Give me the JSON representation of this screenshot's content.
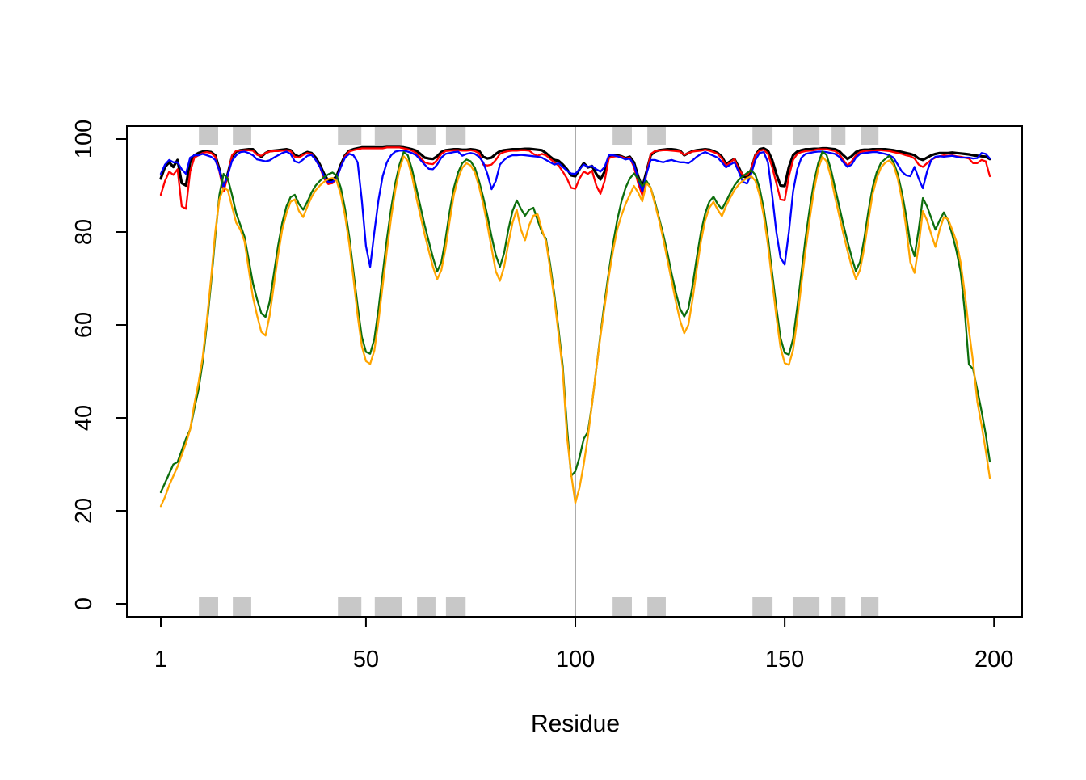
{
  "chart_data": {
    "type": "line",
    "title": "",
    "xlabel": "Residue",
    "ylabel": "",
    "x_range": [
      1,
      199
    ],
    "ylim": [
      0,
      100
    ],
    "x_ticks": [
      1,
      50,
      100,
      150,
      200
    ],
    "y_ticks": [
      0,
      20,
      40,
      60,
      80,
      100
    ],
    "grid": false,
    "legend": "none",
    "background_color": "#FFFFFF",
    "box_color": "#000000",
    "vline_x": 100,
    "vline_color": "#999999",
    "sse_block_color": "#C8C8C8",
    "sse_helix_ranges": [
      [
        10.1,
        14.7
      ],
      [
        18.2,
        22.6
      ],
      [
        43.3,
        48.9
      ],
      [
        52.1,
        58.7
      ],
      [
        62.2,
        66.6
      ],
      [
        69.1,
        73.8
      ],
      [
        108.9,
        113.5
      ],
      [
        117.2,
        121.6
      ],
      [
        142.3,
        147.1
      ],
      [
        151.9,
        158.3
      ],
      [
        161.2,
        164.5
      ],
      [
        168.3,
        172.4
      ]
    ],
    "series": [
      {
        "name": "black",
        "color": "#000000",
        "line_width": 3.2,
        "values": [
          91.5,
          94,
          95,
          94,
          95.5,
          90.5,
          90,
          95,
          96.5,
          97,
          97.3,
          97.3,
          97.2,
          96.5,
          93.5,
          89.5,
          92.5,
          96.2,
          97.3,
          97.6,
          97.7,
          97.8,
          97.8,
          96.8,
          96.2,
          97,
          97.4,
          97.5,
          97.6,
          97.7,
          97.8,
          97.6,
          96.6,
          96.2,
          96.8,
          97.2,
          97,
          96,
          94.5,
          92.5,
          91,
          91.2,
          92,
          94.5,
          96.5,
          97.5,
          97.8,
          98,
          98.2,
          98.2,
          98.2,
          98.2,
          98.2,
          98.2,
          98.3,
          98.3,
          98.3,
          98.3,
          98.2,
          98,
          97.8,
          97.5,
          96.8,
          96,
          95.8,
          95.7,
          96.3,
          97.2,
          97.6,
          97.7,
          97.8,
          97.8,
          97.7,
          97.7,
          97.8,
          97.7,
          97.5,
          96.2,
          95.8,
          96,
          96.8,
          97.4,
          97.6,
          97.7,
          97.8,
          97.8,
          97.8,
          97.9,
          97.9,
          97.8,
          97.7,
          97.6,
          97,
          96.2,
          95.5,
          95.3,
          94.5,
          93.5,
          92.2,
          92,
          93.5,
          94.8,
          93.9,
          94.2,
          92.5,
          91.3,
          93,
          96.2,
          96.4,
          96.5,
          96.3,
          95.9,
          96.2,
          95,
          92,
          89.6,
          93,
          96.5,
          97.3,
          97.6,
          97.7,
          97.8,
          97.8,
          97.7,
          97.5,
          96.5,
          97,
          97.4,
          97.6,
          97.7,
          97.8,
          97.7,
          97.4,
          97,
          96.2,
          94.6,
          95.2,
          95.7,
          94,
          92,
          91.7,
          93.5,
          96.5,
          97.8,
          98,
          97.5,
          95.5,
          92.5,
          90,
          89.9,
          94,
          96.5,
          97.3,
          97.6,
          97.8,
          97.8,
          97.9,
          97.9,
          98,
          98,
          97.9,
          97.8,
          97.4,
          96.5,
          95.7,
          96.3,
          97.2,
          97.6,
          97.7,
          97.7,
          97.8,
          97.8,
          97.8,
          97.8,
          97.7,
          97.6,
          97.4,
          97.2,
          97,
          96.8,
          96.5,
          95.8,
          95.5,
          96,
          96.5,
          96.8,
          97,
          97,
          97,
          97.1,
          97,
          96.9,
          96.8,
          96.7,
          96.5,
          96.4,
          96.3,
          96.2,
          95.7
        ]
      },
      {
        "name": "red",
        "color": "#FF0000",
        "line_width": 2.3,
        "values": [
          88,
          91,
          93,
          92.3,
          93.5,
          85.5,
          85,
          93,
          96,
          96.5,
          97,
          97.2,
          97,
          96.2,
          93,
          88.7,
          92,
          96.5,
          97.5,
          97.5,
          97.6,
          97.6,
          97.5,
          96.6,
          96.4,
          97,
          97.3,
          97.4,
          97.4,
          97.5,
          97.6,
          97.4,
          96.2,
          96,
          96.6,
          97,
          96.8,
          95.5,
          94,
          91.5,
          90.3,
          90.5,
          91.5,
          94,
          96.3,
          97.3,
          97.6,
          97.8,
          98,
          98,
          98,
          98,
          98,
          98,
          98.2,
          98.2,
          98.2,
          98.2,
          98,
          97.8,
          97.5,
          97,
          96,
          95,
          94.7,
          94.6,
          95.5,
          96.8,
          97.4,
          97.5,
          97.6,
          97.6,
          97.5,
          97.5,
          97.6,
          97.4,
          97,
          94.5,
          94.3,
          94.5,
          95.5,
          96.8,
          97.2,
          97.4,
          97.5,
          97.5,
          97.6,
          97.6,
          97.5,
          96.8,
          96.4,
          96.8,
          96.5,
          95.7,
          95,
          94.3,
          93,
          91.5,
          89.5,
          89.3,
          91.5,
          93,
          92.5,
          93.2,
          90,
          88.2,
          91,
          95.9,
          96.2,
          96.3,
          96.2,
          95.8,
          96,
          94,
          90.5,
          87.9,
          92.5,
          96.8,
          97.4,
          97.5,
          97.6,
          97.6,
          97.5,
          97.4,
          97.3,
          96.6,
          97,
          97.3,
          97.4,
          97.5,
          97.7,
          97.5,
          97.2,
          96.8,
          95.8,
          94.3,
          95,
          95.7,
          93.5,
          92.3,
          92.2,
          93.5,
          96.5,
          97.5,
          97.7,
          96.8,
          94,
          90.5,
          87,
          86.8,
          92,
          95.5,
          96.8,
          97.2,
          97.4,
          97.5,
          97.6,
          97.8,
          97.8,
          97.8,
          97.6,
          97.4,
          96.8,
          95.5,
          94.3,
          95.2,
          96.5,
          97.2,
          97.4,
          97.5,
          97.5,
          97.6,
          97.6,
          97.5,
          97.4,
          97.2,
          97,
          96.8,
          96.5,
          96.3,
          95.8,
          94.5,
          94,
          94.8,
          95.5,
          96,
          96.3,
          96.5,
          96.4,
          96.5,
          96.3,
          96.2,
          96,
          95.8,
          94.8,
          94.8,
          95.5,
          95.2,
          92
        ]
      },
      {
        "name": "blue",
        "color": "#0000FF",
        "line_width": 2.3,
        "values": [
          92.5,
          94.5,
          95.5,
          95,
          95,
          93.5,
          92.5,
          96,
          96.5,
          96.5,
          96.8,
          96.5,
          96.2,
          95.5,
          93.2,
          89.6,
          92.3,
          95.3,
          96.5,
          97.2,
          97.3,
          97,
          96.5,
          95.6,
          95.4,
          95.2,
          95.4,
          96,
          96.5,
          97,
          97.3,
          96.8,
          95.2,
          94.9,
          95.6,
          96.4,
          96.6,
          95.5,
          94,
          92,
          90.7,
          90.8,
          91.5,
          94,
          96,
          96.8,
          96.5,
          95,
          87,
          77,
          72.5,
          80,
          87,
          92,
          95,
          96.5,
          97.3,
          97.5,
          97.5,
          97.3,
          97,
          96.5,
          95.5,
          94.5,
          93.6,
          93.5,
          94.5,
          96,
          96.8,
          97,
          97.2,
          97.3,
          96.4,
          96.8,
          97,
          96.8,
          96.2,
          95,
          92.5,
          89.2,
          91,
          94.5,
          95.5,
          96.2,
          96.5,
          96.5,
          96.6,
          96.5,
          96.4,
          96.3,
          96.2,
          96,
          95.5,
          95,
          94.5,
          94.8,
          94,
          93.2,
          92.6,
          92.5,
          93.5,
          94.5,
          94,
          94.2,
          93.5,
          93,
          94,
          96.5,
          96.5,
          96.3,
          96,
          95.6,
          95.8,
          94.5,
          91.5,
          88.7,
          92.5,
          95.5,
          95.5,
          95.2,
          95,
          95.3,
          95.5,
          95.2,
          95,
          95,
          94.8,
          95.4,
          96.2,
          96.8,
          97.2,
          96.8,
          96.4,
          96,
          95,
          93.9,
          94.5,
          95,
          93,
          90.8,
          90.4,
          92.5,
          95.5,
          97,
          97.2,
          95,
          88,
          80,
          74.5,
          73,
          80,
          88.7,
          93.5,
          96,
          96.8,
          97,
          97.2,
          97.3,
          97.3,
          97.2,
          97,
          96.8,
          96.2,
          95,
          94,
          94.5,
          96,
          96.8,
          97,
          97.1,
          97.2,
          97.2,
          97,
          96.8,
          96.5,
          96,
          94.5,
          93,
          92.2,
          92,
          94,
          91.5,
          89.4,
          93,
          95.5,
          96.2,
          96.3,
          96.2,
          96.3,
          96.4,
          96.2,
          96,
          96,
          96,
          95.8,
          95.9,
          97,
          96.8,
          95.8
        ]
      },
      {
        "name": "darkgreen",
        "color": "#0D6E0D",
        "line_width": 2.3,
        "values": [
          24,
          26,
          28,
          30,
          30.5,
          33,
          35.5,
          37.5,
          42,
          46,
          52,
          60,
          69,
          79,
          88,
          92.5,
          91.5,
          88,
          84,
          81.5,
          79,
          74,
          69,
          65.5,
          62.5,
          61.7,
          65,
          71,
          77,
          82,
          85.5,
          87.5,
          88,
          86,
          84.8,
          86.5,
          88.5,
          90,
          91,
          91.8,
          92.4,
          92.8,
          92.2,
          89.5,
          85,
          79,
          71.5,
          64,
          57.5,
          54.2,
          53.8,
          57,
          63.5,
          71,
          78.5,
          85,
          90.5,
          94.5,
          97.2,
          96.5,
          93.5,
          89.5,
          85.5,
          81.5,
          78,
          74.5,
          71.5,
          73.5,
          78.5,
          84.5,
          89.5,
          92.8,
          94.8,
          95.6,
          95.2,
          93.8,
          91,
          87.5,
          83.5,
          79,
          75,
          72.5,
          75.5,
          80.5,
          84.5,
          86.8,
          85,
          83.5,
          84.8,
          85.2,
          82.5,
          80,
          78.5,
          73,
          66.5,
          59,
          51,
          38,
          27.5,
          28.5,
          31.5,
          35.5,
          37,
          43,
          50.5,
          58,
          65,
          71.5,
          77.5,
          82.5,
          86.5,
          89.5,
          91.5,
          92.6,
          91.5,
          89.8,
          91,
          89.5,
          86.5,
          83,
          79.5,
          75.5,
          71,
          67,
          63.5,
          61.8,
          63.5,
          68.5,
          74.5,
          80,
          84,
          86.5,
          87.6,
          86,
          84.9,
          86.6,
          88.4,
          90,
          91.2,
          92,
          92.7,
          93.3,
          92.3,
          89.5,
          85,
          78.8,
          71.2,
          63.8,
          57.2,
          54,
          53.6,
          57,
          63.8,
          71.2,
          78.8,
          85.2,
          90.8,
          94.8,
          97.3,
          96.6,
          93.6,
          89.6,
          85.6,
          81.6,
          78,
          74.6,
          71.6,
          73.6,
          78.6,
          84.6,
          89.6,
          92.9,
          94.9,
          95.7,
          96.4,
          95,
          92.5,
          88.5,
          83.5,
          77.5,
          74.8,
          80.5,
          87.3,
          85.5,
          83,
          80.5,
          82.5,
          84.2,
          82.5,
          79.5,
          76,
          71.5,
          63,
          51.5,
          50.5,
          46,
          41.5,
          36.5,
          30.6
        ]
      },
      {
        "name": "orange",
        "color": "#FFA500",
        "line_width": 2.3,
        "values": [
          21,
          23,
          25.5,
          27.5,
          29.5,
          32,
          34.5,
          37.5,
          43,
          47.5,
          53,
          61,
          70,
          80,
          87,
          89.5,
          89,
          85.5,
          82,
          80.5,
          78,
          72,
          66,
          62,
          58.5,
          57.7,
          62,
          68.5,
          75,
          80.5,
          84,
          86.5,
          87,
          84.5,
          83.2,
          85.5,
          87.5,
          89,
          90,
          90.8,
          91.4,
          91.6,
          91,
          88,
          83.5,
          77.5,
          70,
          62,
          55.5,
          52.2,
          51.6,
          54.5,
          61,
          68.5,
          76,
          83,
          89,
          93.5,
          96.3,
          95.3,
          92,
          87.5,
          83.5,
          79.5,
          76,
          72.5,
          69.8,
          71.8,
          76.5,
          82.5,
          88,
          91.5,
          93.8,
          94.8,
          94.3,
          92.8,
          89.8,
          86,
          81.5,
          76.5,
          71.5,
          69.5,
          72.5,
          77.5,
          82,
          84.8,
          80.5,
          78.2,
          81.5,
          83.5,
          83.8,
          80.5,
          78,
          72,
          65.5,
          58,
          50,
          36,
          28,
          21.7,
          25,
          30,
          36,
          43,
          50.5,
          57.5,
          64,
          70.5,
          76,
          80.5,
          83.5,
          86,
          88,
          89.9,
          88.5,
          86.6,
          90.5,
          89.5,
          86,
          82.5,
          78.5,
          74,
          69.5,
          65,
          61,
          58.2,
          60,
          65.5,
          72,
          78,
          82.5,
          85.2,
          86.5,
          84.8,
          83.4,
          85.6,
          87.4,
          89,
          90.2,
          91,
          91.6,
          92,
          91,
          88,
          83.5,
          77.2,
          69.5,
          61.8,
          55.2,
          51.8,
          51.4,
          54.6,
          61.2,
          68.8,
          76.2,
          83,
          89,
          93.6,
          96.2,
          95.2,
          92,
          87.6,
          83.6,
          79.6,
          76,
          72.6,
          69.9,
          71.9,
          76.6,
          82.6,
          88.1,
          91.6,
          93.9,
          94.9,
          95.4,
          94.4,
          91.5,
          87,
          81,
          73.5,
          71.2,
          77,
          84.5,
          82.5,
          79.5,
          76.8,
          80.5,
          83.2,
          82.8,
          80.5,
          78,
          73.5,
          67,
          59,
          52,
          43.5,
          38.5,
          33,
          27.1
        ]
      }
    ]
  }
}
